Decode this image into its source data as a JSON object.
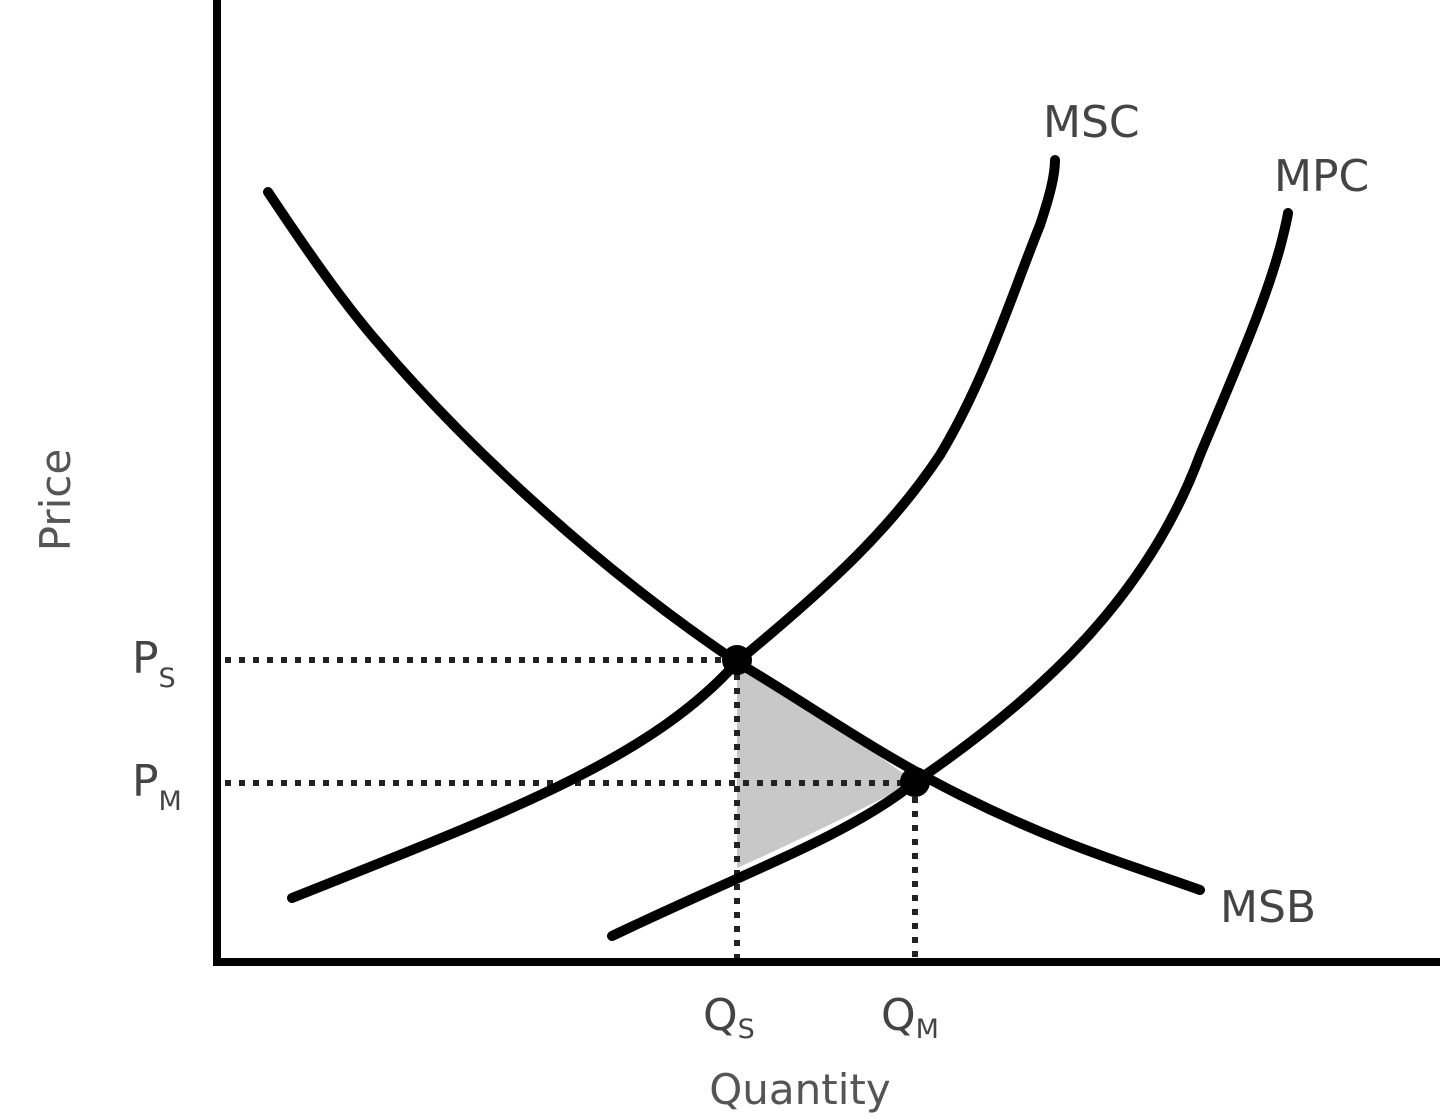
{
  "chart_data": {
    "type": "line",
    "title": "",
    "xlabel": "Quantity",
    "ylabel": "Price",
    "grid": false,
    "legend": "none",
    "colors": {
      "curves": "#000000",
      "guides": "#222222",
      "shaded_area": "#c8c8c8",
      "text": "#444444"
    },
    "series": [
      {
        "name": "MSB",
        "shape": "downward-sloping, convex"
      },
      {
        "name": "MSC",
        "shape": "upward-sloping, convex"
      },
      {
        "name": "MPC",
        "shape": "upward-sloping, convex"
      }
    ],
    "points": [
      {
        "name": "social-optimum",
        "on": [
          "MSB",
          "MSC"
        ],
        "y_label": "P",
        "y_sub": "S",
        "x_label": "Q",
        "x_sub": "S"
      },
      {
        "name": "market-equilibrium",
        "on": [
          "MSB",
          "MPC"
        ],
        "y_label": "P",
        "y_sub": "M",
        "x_label": "Q",
        "x_sub": "M"
      }
    ],
    "annotations": [
      {
        "type": "shaded-triangle",
        "meaning": "deadweight loss between Q_S and Q_M"
      }
    ]
  }
}
